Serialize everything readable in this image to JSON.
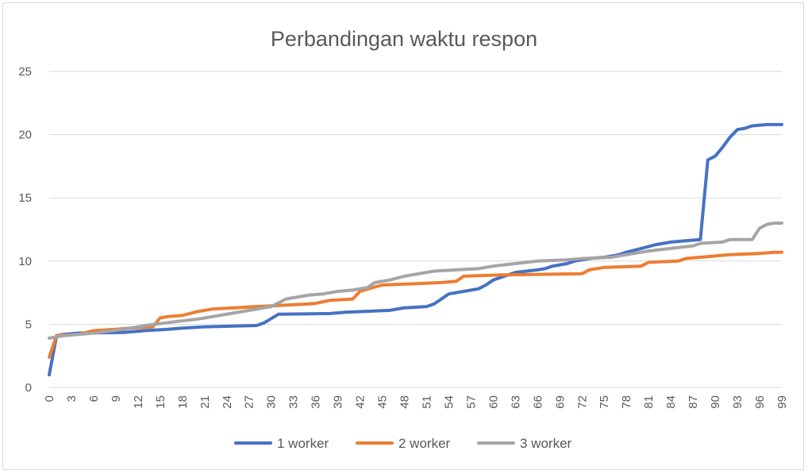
{
  "chart_data": {
    "type": "line",
    "title": "Perbandingan waktu respon",
    "xlabel": "",
    "ylabel": "",
    "ylim": [
      0,
      25
    ],
    "yticks": [
      0,
      5,
      10,
      15,
      20,
      25
    ],
    "xlim": [
      0,
      99
    ],
    "xtick_step": 3,
    "grid": true,
    "legend_position": "bottom",
    "series": [
      {
        "name": "1 worker",
        "color": "#4472c4",
        "points": [
          [
            0,
            1.0
          ],
          [
            1,
            4.1
          ],
          [
            2,
            4.2
          ],
          [
            4,
            4.3
          ],
          [
            10,
            4.35
          ],
          [
            13,
            4.5
          ],
          [
            16,
            4.6
          ],
          [
            18,
            4.7
          ],
          [
            21,
            4.8
          ],
          [
            28,
            4.9
          ],
          [
            29,
            5.1
          ],
          [
            31,
            5.8
          ],
          [
            38,
            5.85
          ],
          [
            40,
            5.95
          ],
          [
            42,
            6.0
          ],
          [
            46,
            6.1
          ],
          [
            48,
            6.3
          ],
          [
            51,
            6.4
          ],
          [
            52,
            6.6
          ],
          [
            53,
            7.0
          ],
          [
            54,
            7.4
          ],
          [
            56,
            7.6
          ],
          [
            58,
            7.8
          ],
          [
            59,
            8.1
          ],
          [
            60,
            8.5
          ],
          [
            62,
            8.9
          ],
          [
            63,
            9.1
          ],
          [
            66,
            9.3
          ],
          [
            67,
            9.4
          ],
          [
            68,
            9.6
          ],
          [
            69,
            9.7
          ],
          [
            70,
            9.8
          ],
          [
            71,
            10.0
          ],
          [
            73,
            10.2
          ],
          [
            75,
            10.3
          ],
          [
            77,
            10.5
          ],
          [
            78,
            10.7
          ],
          [
            80,
            11.0
          ],
          [
            82,
            11.3
          ],
          [
            84,
            11.5
          ],
          [
            86,
            11.6
          ],
          [
            88,
            11.7
          ],
          [
            89,
            18.0
          ],
          [
            90,
            18.3
          ],
          [
            91,
            19.0
          ],
          [
            92,
            19.8
          ],
          [
            93,
            20.4
          ],
          [
            94,
            20.5
          ],
          [
            95,
            20.7
          ],
          [
            97,
            20.8
          ],
          [
            99,
            20.8
          ]
        ]
      },
      {
        "name": "2 worker",
        "color": "#ed7d31",
        "points": [
          [
            0,
            2.4
          ],
          [
            1,
            4.1
          ],
          [
            4,
            4.2
          ],
          [
            6,
            4.5
          ],
          [
            9,
            4.6
          ],
          [
            11,
            4.7
          ],
          [
            14,
            4.8
          ],
          [
            15,
            5.5
          ],
          [
            16,
            5.6
          ],
          [
            18,
            5.7
          ],
          [
            20,
            6.0
          ],
          [
            22,
            6.2
          ],
          [
            25,
            6.3
          ],
          [
            28,
            6.4
          ],
          [
            30,
            6.45
          ],
          [
            33,
            6.55
          ],
          [
            35,
            6.6
          ],
          [
            36,
            6.65
          ],
          [
            38,
            6.9
          ],
          [
            41,
            7.0
          ],
          [
            42,
            7.6
          ],
          [
            44,
            7.95
          ],
          [
            45,
            8.1
          ],
          [
            49,
            8.2
          ],
          [
            53,
            8.3
          ],
          [
            55,
            8.4
          ],
          [
            56,
            8.8
          ],
          [
            61,
            8.9
          ],
          [
            72,
            9.0
          ],
          [
            73,
            9.3
          ],
          [
            75,
            9.5
          ],
          [
            80,
            9.6
          ],
          [
            81,
            9.9
          ],
          [
            85,
            10.0
          ],
          [
            86,
            10.2
          ],
          [
            90,
            10.4
          ],
          [
            92,
            10.5
          ],
          [
            96,
            10.6
          ],
          [
            98,
            10.7
          ],
          [
            99,
            10.7
          ]
        ]
      },
      {
        "name": "3 worker",
        "color": "#a5a5a5",
        "points": [
          [
            0,
            3.9
          ],
          [
            2,
            4.1
          ],
          [
            6,
            4.3
          ],
          [
            10,
            4.6
          ],
          [
            13,
            4.9
          ],
          [
            17,
            5.2
          ],
          [
            20,
            5.4
          ],
          [
            23,
            5.7
          ],
          [
            25,
            5.9
          ],
          [
            28,
            6.2
          ],
          [
            30,
            6.4
          ],
          [
            32,
            7.0
          ],
          [
            35,
            7.3
          ],
          [
            37,
            7.4
          ],
          [
            39,
            7.6
          ],
          [
            41,
            7.7
          ],
          [
            43,
            7.9
          ],
          [
            44,
            8.3
          ],
          [
            46,
            8.5
          ],
          [
            48,
            8.8
          ],
          [
            50,
            9.0
          ],
          [
            52,
            9.2
          ],
          [
            55,
            9.3
          ],
          [
            58,
            9.4
          ],
          [
            60,
            9.6
          ],
          [
            63,
            9.8
          ],
          [
            66,
            10.0
          ],
          [
            70,
            10.1
          ],
          [
            72,
            10.2
          ],
          [
            76,
            10.3
          ],
          [
            79,
            10.6
          ],
          [
            81,
            10.8
          ],
          [
            84,
            11.0
          ],
          [
            87,
            11.2
          ],
          [
            88,
            11.4
          ],
          [
            91,
            11.5
          ],
          [
            92,
            11.7
          ],
          [
            95,
            11.7
          ],
          [
            96,
            12.6
          ],
          [
            97,
            12.9
          ],
          [
            98,
            13.0
          ],
          [
            99,
            13.0
          ]
        ]
      }
    ]
  }
}
